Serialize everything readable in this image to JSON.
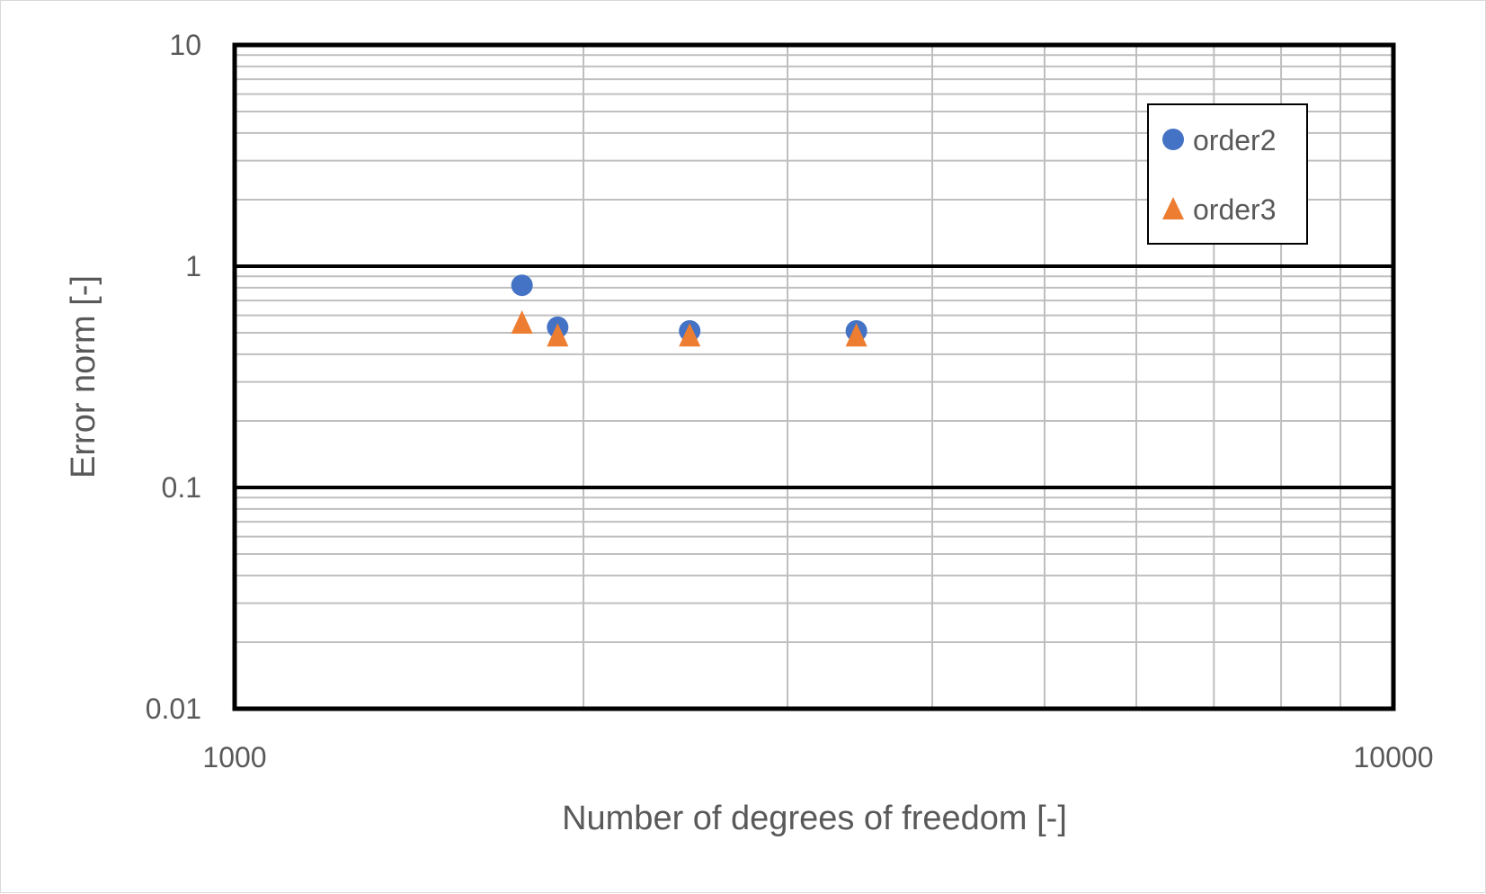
{
  "chart_data": {
    "type": "scatter",
    "title": "",
    "xlabel": "Number of degrees of freedom [-]",
    "ylabel": "Error norm [-]",
    "xscale": "log",
    "yscale": "log",
    "xlim": [
      1000,
      10000
    ],
    "ylim": [
      0.01,
      10
    ],
    "x_ticks": [
      "1000",
      "10000"
    ],
    "y_ticks": [
      "0.01",
      "0.1",
      "1",
      "10"
    ],
    "grid": true,
    "legend_position": "top-right",
    "series": [
      {
        "name": "order2",
        "marker": "circle",
        "color": "#4472C4",
        "points": [
          {
            "x": 1770,
            "y": 0.82
          },
          {
            "x": 1900,
            "y": 0.53
          },
          {
            "x": 2470,
            "y": 0.51
          },
          {
            "x": 3440,
            "y": 0.51
          }
        ]
      },
      {
        "name": "order3",
        "marker": "triangle",
        "color": "#ED7D31",
        "points": [
          {
            "x": 1770,
            "y": 0.56
          },
          {
            "x": 1900,
            "y": 0.49
          },
          {
            "x": 2470,
            "y": 0.49
          },
          {
            "x": 3440,
            "y": 0.49
          }
        ]
      }
    ]
  }
}
